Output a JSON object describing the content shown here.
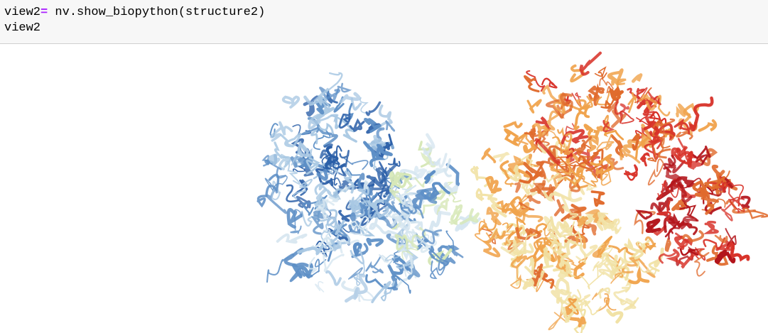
{
  "code_cell": {
    "line1": {
      "var": "view2",
      "op": "=",
      "expr": " nv.show_biopython(structure2)"
    },
    "line2": "view2"
  },
  "viewer": {
    "colors": {
      "blue_dark": "#2b5fa8",
      "blue_mid": "#5d8fc6",
      "blue_light": "#a9c8e3",
      "blue_pale": "#d6e6f0",
      "green_pale": "#d7e8b8",
      "yellow_pale": "#f1e2a6",
      "orange": "#f0a24a",
      "orange_dark": "#e06a2c",
      "red": "#d73027",
      "red_dark": "#b3151b"
    }
  }
}
